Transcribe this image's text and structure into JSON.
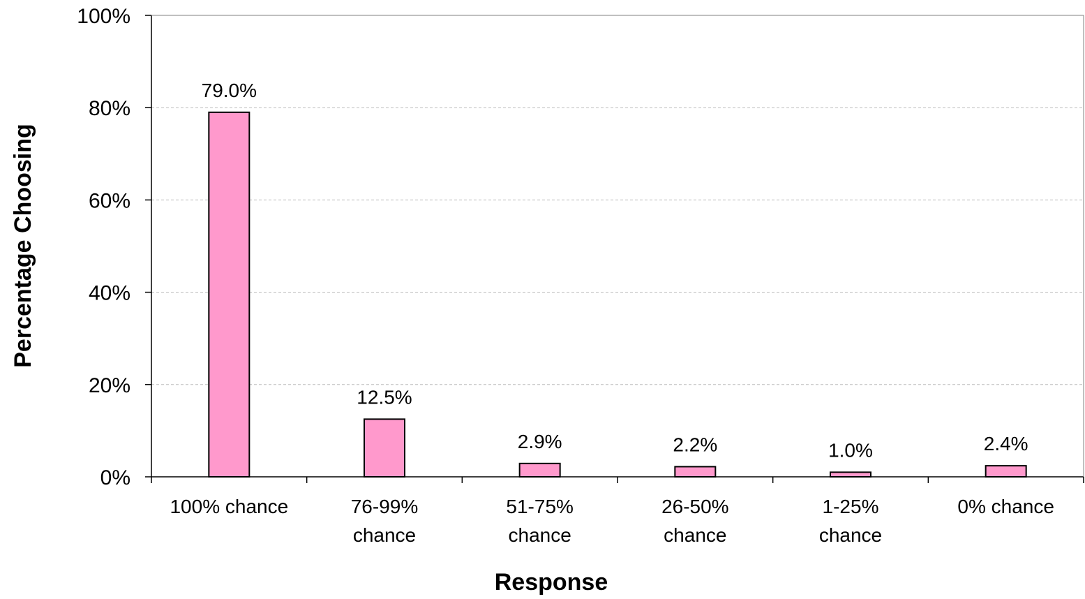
{
  "chart_data": {
    "type": "bar",
    "title": "",
    "xlabel": "Response",
    "ylabel": "Percentage Choosing",
    "ylim": [
      0,
      100
    ],
    "y_ticks": [
      0,
      20,
      40,
      60,
      80,
      100
    ],
    "y_tick_labels": [
      "0%",
      "20%",
      "40%",
      "60%",
      "80%",
      "100%"
    ],
    "grid": true,
    "legend": "none",
    "categories": [
      [
        "100% chance"
      ],
      [
        "76-99%",
        "chance"
      ],
      [
        "51-75%",
        "chance"
      ],
      [
        "26-50%",
        "chance"
      ],
      [
        "1-25%",
        "chance"
      ],
      [
        "0% chance"
      ]
    ],
    "values": [
      79.0,
      12.5,
      2.9,
      2.2,
      1.0,
      2.4
    ],
    "data_labels": [
      "79.0%",
      "12.5%",
      "2.9%",
      "2.2%",
      "1.0%",
      "2.4%"
    ],
    "colors": {
      "bar_fill": "#FF99CC",
      "bar_stroke": "#000000",
      "grid": "#BBBBBB",
      "axis": "#000000"
    }
  }
}
